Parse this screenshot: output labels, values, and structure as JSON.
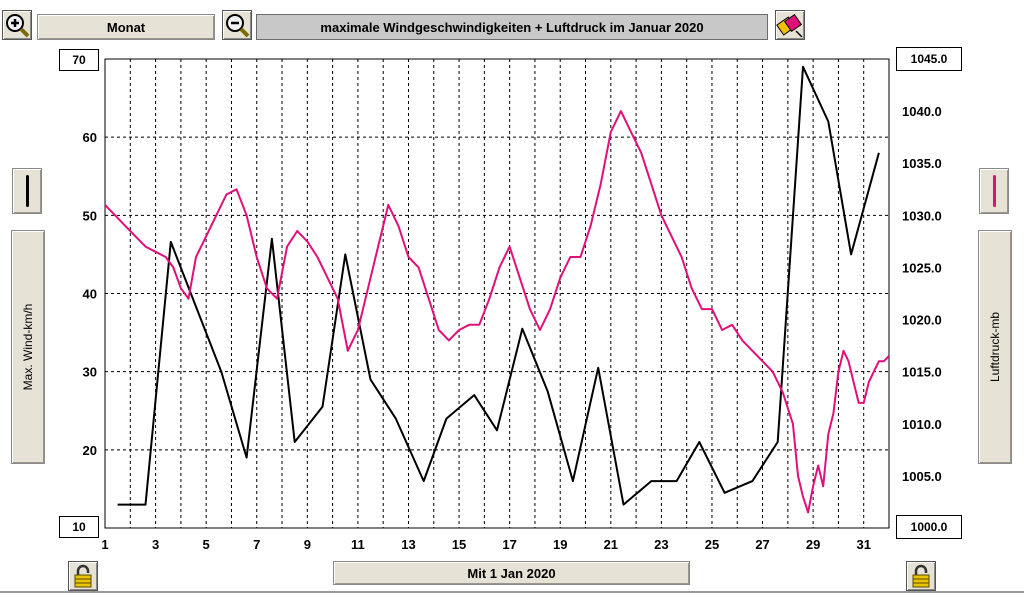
{
  "toolbar": {
    "zoom_in_icon": "magnifier-plus-icon",
    "period_label": "Monat",
    "zoom_out_icon": "magnifier-minus-icon",
    "title": "maximale Windgeschwindigkeiten + Luftdruck im Januar 2020",
    "print_icon": "eraser-print-icon"
  },
  "left_panel": {
    "series_color": "#000000",
    "axis_label": "Max. Wind-km/h",
    "axis_top": "70",
    "axis_bottom": "10"
  },
  "right_panel": {
    "series_color": "#e0107a",
    "axis_label": "Luftdruck-mb",
    "axis_top": "1045.0",
    "axis_bottom": "1000.0"
  },
  "footer": {
    "date_label": "Mit 1 Jan 2020",
    "lock_left_icon": "padlock-icon",
    "lock_right_icon": "padlock-icon"
  },
  "chart_data": {
    "type": "line",
    "title": "maximale Windgeschwindigkeiten + Luftdruck im Januar 2020",
    "xlabel": "",
    "xlim": [
      1,
      32
    ],
    "x_ticks": [
      "1",
      "3",
      "5",
      "7",
      "9",
      "11",
      "13",
      "15",
      "17",
      "19",
      "21",
      "23",
      "25",
      "27",
      "29",
      "31"
    ],
    "grid": true,
    "y_left": {
      "label": "Max. Wind-km/h",
      "lim": [
        10,
        70
      ],
      "ticks": [
        "10",
        "20",
        "30",
        "40",
        "50",
        "60",
        "70"
      ]
    },
    "y_right": {
      "label": "Luftdruck-mb",
      "lim": [
        1000,
        1045
      ],
      "ticks": [
        "1000.0",
        "1005.0",
        "1010.0",
        "1015.0",
        "1020.0",
        "1025.0",
        "1030.0",
        "1035.0",
        "1040.0",
        "1045.0"
      ]
    },
    "series": [
      {
        "name": "Max. Wind-km/h",
        "axis": "left",
        "color": "#000000",
        "x": [
          1.5,
          2.6,
          3.6,
          5.6,
          6.6,
          7.6,
          8.5,
          9.6,
          10.5,
          11.5,
          12.5,
          13.6,
          14.5,
          15.6,
          16.5,
          17.5,
          18.5,
          19.5,
          20.5,
          21.5,
          22.6,
          23.6,
          24.5,
          25.5,
          26.6,
          27.6,
          28.6,
          29.6,
          30.5,
          31.6
        ],
        "values": [
          13,
          13,
          46.6,
          30,
          19,
          47,
          21,
          25.5,
          45,
          29,
          24,
          16,
          24,
          27,
          22.5,
          35.5,
          27.5,
          16,
          30.5,
          13,
          16,
          16,
          21,
          14.5,
          16,
          21,
          69,
          62,
          45,
          58
        ]
      },
      {
        "name": "Luftdruck-mb",
        "axis": "right",
        "color": "#e0107a",
        "x": [
          1.0,
          1.4,
          1.8,
          2.2,
          2.6,
          3.0,
          3.4,
          3.7,
          4.0,
          4.3,
          4.6,
          5.0,
          5.4,
          5.8,
          6.2,
          6.6,
          7.0,
          7.4,
          7.8,
          8.2,
          8.6,
          9.0,
          9.4,
          9.8,
          10.2,
          10.6,
          11.0,
          11.4,
          11.8,
          12.2,
          12.6,
          13.0,
          13.4,
          13.8,
          14.2,
          14.6,
          15.0,
          15.4,
          15.8,
          16.2,
          16.6,
          17.0,
          17.4,
          17.8,
          18.2,
          18.6,
          19.0,
          19.4,
          19.8,
          20.2,
          20.6,
          21.0,
          21.4,
          21.8,
          22.2,
          22.6,
          23.0,
          23.4,
          23.8,
          24.2,
          24.6,
          25.0,
          25.4,
          25.8,
          26.2,
          26.6,
          27.0,
          27.4,
          27.8,
          28.2,
          28.4,
          28.6,
          28.8,
          29.0,
          29.2,
          29.4,
          29.6,
          29.8,
          30.0,
          30.2,
          30.4,
          30.6,
          30.8,
          31.0,
          31.2,
          31.4,
          31.6,
          31.8,
          32.0
        ],
        "values": [
          1031,
          1030,
          1029,
          1028,
          1027,
          1026.5,
          1026,
          1025,
          1023,
          1022,
          1026,
          1028,
          1030,
          1032,
          1032.5,
          1030,
          1026,
          1023,
          1022,
          1027,
          1028.5,
          1027.5,
          1026,
          1024,
          1022,
          1017,
          1019,
          1023,
          1027,
          1031,
          1029,
          1026,
          1025,
          1022,
          1019,
          1018,
          1019,
          1019.5,
          1019.5,
          1022,
          1025,
          1027,
          1024,
          1021,
          1019,
          1021,
          1024,
          1026,
          1026,
          1029,
          1033,
          1038,
          1040,
          1038,
          1036,
          1033,
          1030,
          1028,
          1026,
          1023,
          1021,
          1021,
          1019,
          1019.5,
          1018,
          1017,
          1016,
          1015,
          1013,
          1010,
          1005,
          1003,
          1001.5,
          1004,
          1006,
          1004,
          1009,
          1011,
          1015,
          1017,
          1016,
          1014,
          1012,
          1012,
          1014,
          1015,
          1016,
          1016,
          1016.5
        ]
      }
    ]
  }
}
